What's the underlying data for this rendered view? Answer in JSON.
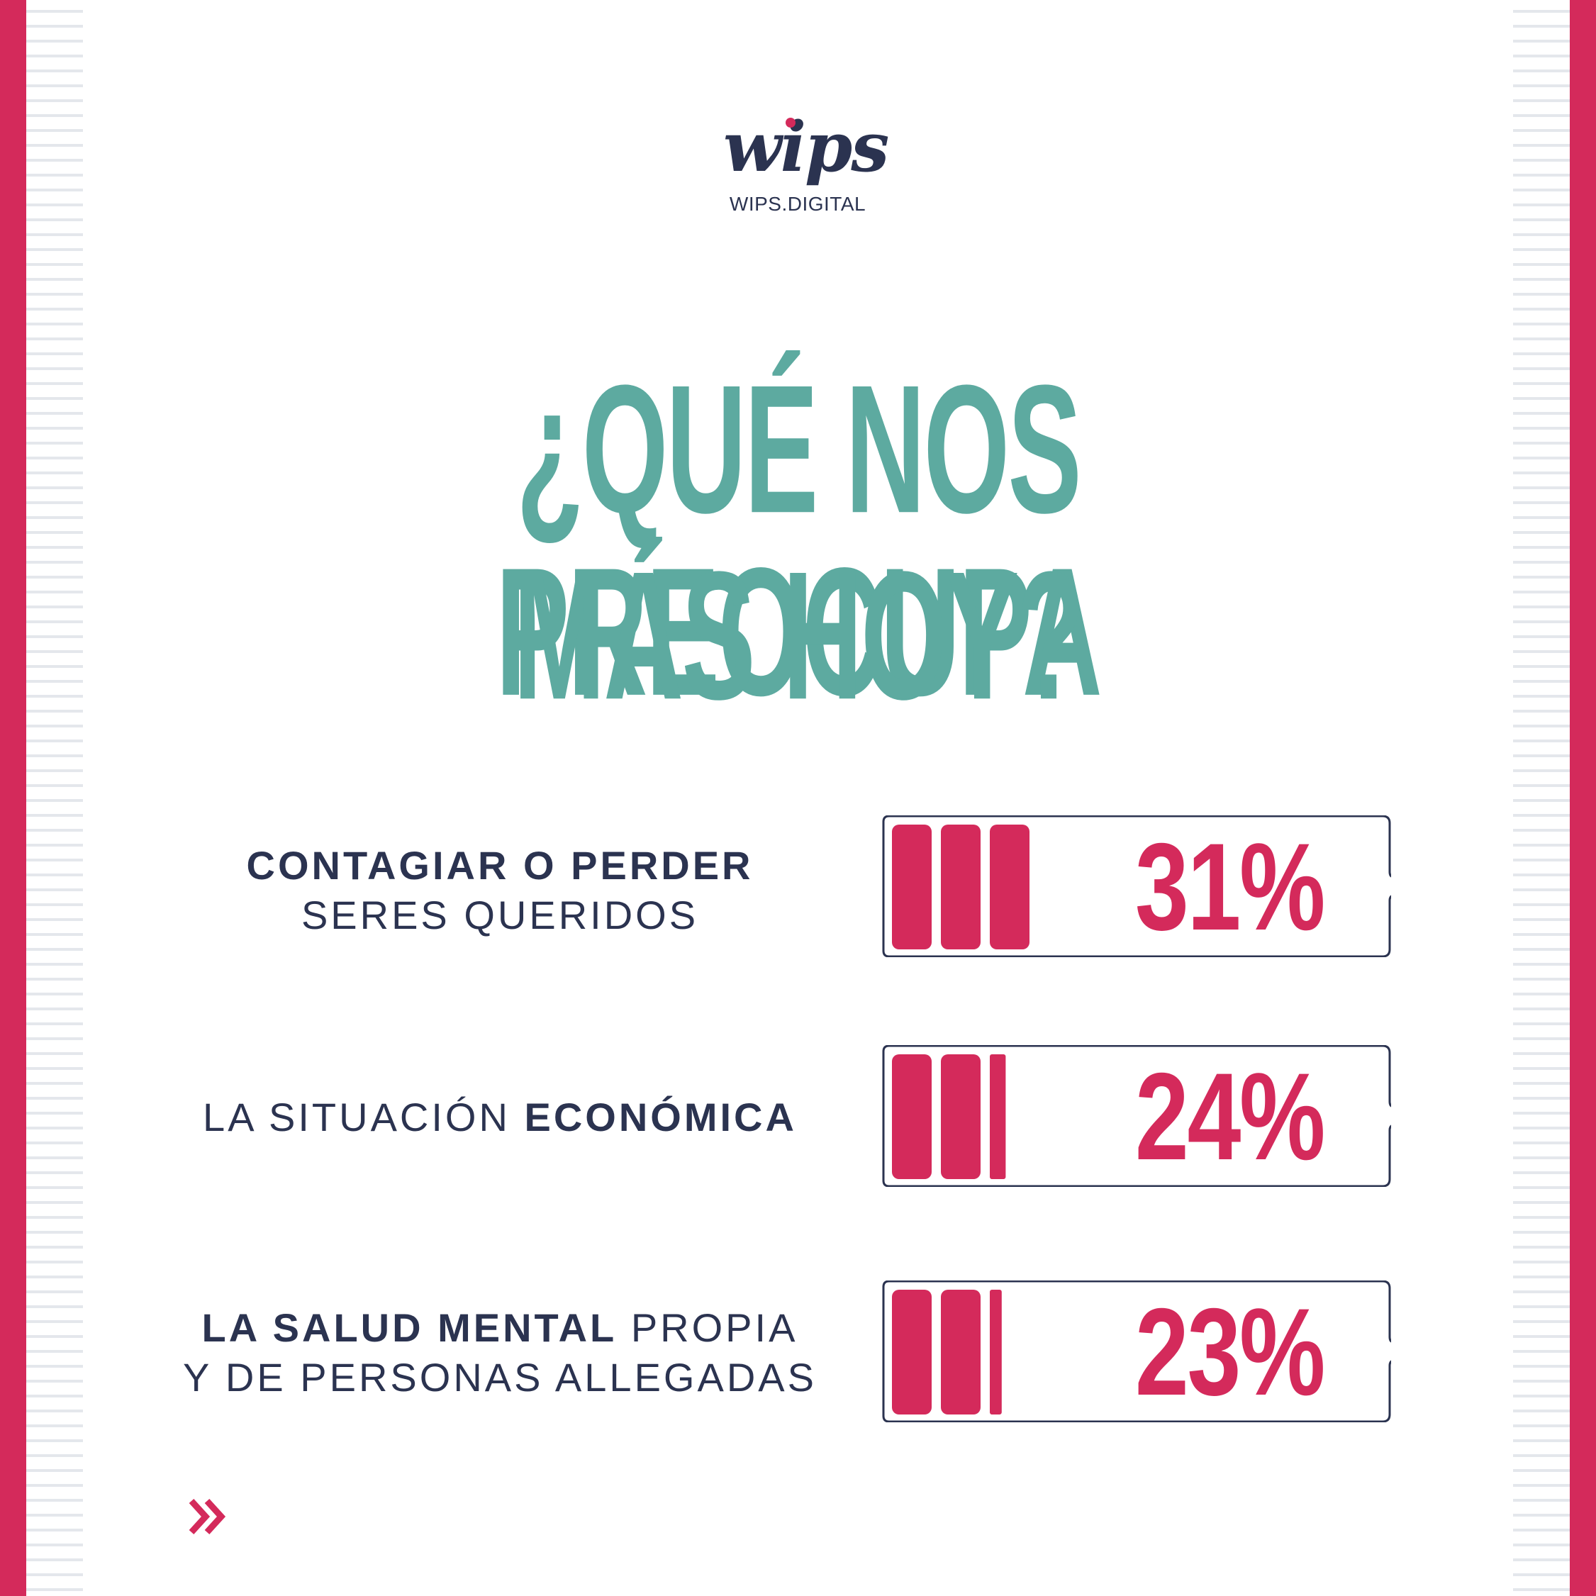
{
  "brand": {
    "logo_text": "wips",
    "website": "WIPS.DIGITAL"
  },
  "headline": {
    "line1": "¿QUÉ NOS PREOCUPA",
    "line2": "MÁS HOY?"
  },
  "items": [
    {
      "label_bold": "CONTAGIAR O PERDER",
      "label_normal": "SERES QUERIDOS",
      "percent_text": "31%",
      "value": 31
    },
    {
      "label_normal": "LA SITUACIÓN",
      "label_bold": "ECONÓMICA",
      "percent_text": "24%",
      "value": 24
    },
    {
      "label_bold": "LA SALUD MENTAL",
      "label_normal": "PROPIA",
      "label_line2": "Y DE PERSONAS ALLEGADAS",
      "percent_text": "23%",
      "value": 23
    }
  ],
  "icons": {
    "next": "double-chevron-right-icon"
  },
  "colors": {
    "accent": "#d42a5b",
    "headline": "#5daaa0",
    "text": "#2b3350",
    "dash": "#e4e7ec"
  }
}
